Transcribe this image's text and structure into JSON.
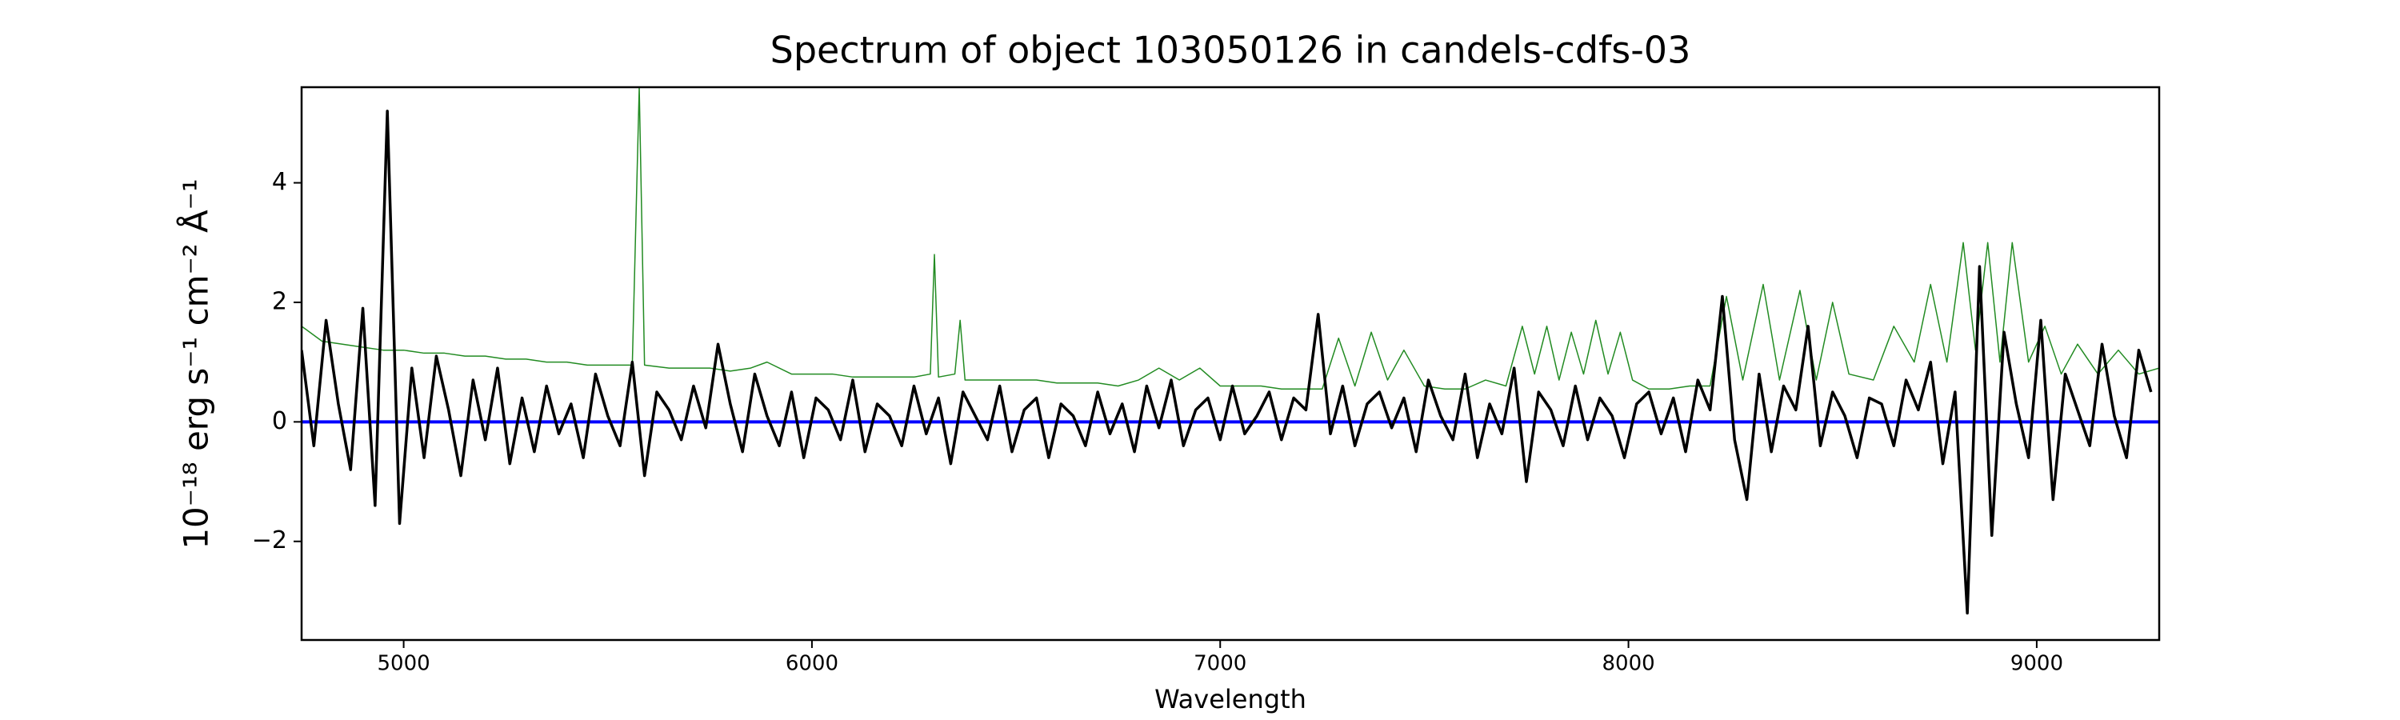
{
  "chart_data": {
    "type": "line",
    "title": "Spectrum of object 103050126 in candels-cdfs-03",
    "xlabel": "Wavelength",
    "ylabel": "10⁻¹⁸ erg s⁻¹ cm⁻² Å⁻¹",
    "xlim": [
      4750,
      9300
    ],
    "ylim": [
      -3.65,
      5.6
    ],
    "xticks": [
      5000,
      6000,
      7000,
      8000,
      9000
    ],
    "yticks": [
      {
        "value": -2,
        "label": "−2"
      },
      0,
      2,
      4
    ],
    "series": [
      {
        "color": "#228b22",
        "width": 1.5,
        "x": [
          4750,
          4800,
          4850,
          4900,
          4950,
          5000,
          5050,
          5100,
          5150,
          5200,
          5250,
          5300,
          5350,
          5400,
          5450,
          5500,
          5560,
          5577,
          5590,
          5650,
          5700,
          5750,
          5800,
          5850,
          5890,
          5950,
          6000,
          6050,
          6100,
          6150,
          6200,
          6250,
          6290,
          6300,
          6310,
          6350,
          6363,
          6375,
          6450,
          6500,
          6550,
          6600,
          6650,
          6700,
          6750,
          6800,
          6850,
          6900,
          6950,
          7000,
          7050,
          7100,
          7150,
          7200,
          7250,
          7290,
          7330,
          7370,
          7410,
          7450,
          7500,
          7550,
          7600,
          7650,
          7700,
          7740,
          7770,
          7800,
          7830,
          7860,
          7890,
          7920,
          7950,
          7980,
          8010,
          8050,
          8100,
          8150,
          8200,
          8240,
          8280,
          8330,
          8370,
          8420,
          8460,
          8500,
          8540,
          8600,
          8650,
          8700,
          8740,
          8780,
          8820,
          8850,
          8880,
          8910,
          8940,
          8980,
          9020,
          9060,
          9100,
          9150,
          9200,
          9250,
          9300
        ],
        "values": [
          1.6,
          1.35,
          1.3,
          1.25,
          1.2,
          1.2,
          1.15,
          1.15,
          1.1,
          1.1,
          1.05,
          1.05,
          1.0,
          1.0,
          0.95,
          0.95,
          0.95,
          5.6,
          0.95,
          0.9,
          0.9,
          0.9,
          0.85,
          0.9,
          1.0,
          0.8,
          0.8,
          0.8,
          0.75,
          0.75,
          0.75,
          0.75,
          0.8,
          2.8,
          0.75,
          0.8,
          1.7,
          0.7,
          0.7,
          0.7,
          0.7,
          0.65,
          0.65,
          0.65,
          0.6,
          0.7,
          0.9,
          0.7,
          0.9,
          0.6,
          0.6,
          0.6,
          0.55,
          0.55,
          0.55,
          1.4,
          0.6,
          1.5,
          0.7,
          1.2,
          0.6,
          0.55,
          0.55,
          0.7,
          0.6,
          1.6,
          0.8,
          1.6,
          0.7,
          1.5,
          0.8,
          1.7,
          0.8,
          1.5,
          0.7,
          0.55,
          0.55,
          0.6,
          0.6,
          2.1,
          0.7,
          2.3,
          0.7,
          2.2,
          0.7,
          2.0,
          0.8,
          0.7,
          1.6,
          1.0,
          2.3,
          1.0,
          3.0,
          1.2,
          3.0,
          1.0,
          3.0,
          1.0,
          1.6,
          0.8,
          1.3,
          0.8,
          1.2,
          0.8,
          0.9
        ]
      },
      {
        "color": "#0000ff",
        "width": 4,
        "x": [
          4750,
          9300
        ],
        "values": [
          0,
          0
        ]
      },
      {
        "color": "#000000",
        "width": 3.5,
        "x": [
          4750,
          4780,
          4810,
          4840,
          4870,
          4900,
          4930,
          4960,
          4990,
          5020,
          5050,
          5080,
          5110,
          5140,
          5170,
          5200,
          5230,
          5260,
          5290,
          5320,
          5350,
          5380,
          5410,
          5440,
          5470,
          5500,
          5530,
          5560,
          5590,
          5620,
          5650,
          5680,
          5710,
          5740,
          5770,
          5800,
          5830,
          5860,
          5890,
          5920,
          5950,
          5980,
          6010,
          6040,
          6070,
          6100,
          6130,
          6160,
          6190,
          6220,
          6250,
          6280,
          6310,
          6340,
          6370,
          6400,
          6430,
          6460,
          6490,
          6520,
          6550,
          6580,
          6610,
          6640,
          6670,
          6700,
          6730,
          6760,
          6790,
          6820,
          6850,
          6880,
          6910,
          6940,
          6970,
          7000,
          7030,
          7060,
          7090,
          7120,
          7150,
          7180,
          7210,
          7240,
          7270,
          7300,
          7330,
          7360,
          7390,
          7420,
          7450,
          7480,
          7510,
          7540,
          7570,
          7600,
          7630,
          7660,
          7690,
          7720,
          7750,
          7780,
          7810,
          7840,
          7870,
          7900,
          7930,
          7960,
          7990,
          8020,
          8050,
          8080,
          8110,
          8140,
          8170,
          8200,
          8230,
          8260,
          8290,
          8320,
          8350,
          8380,
          8410,
          8440,
          8470,
          8500,
          8530,
          8560,
          8590,
          8620,
          8650,
          8680,
          8710,
          8740,
          8770,
          8800,
          8830,
          8860,
          8890,
          8920,
          8950,
          8980,
          9010,
          9040,
          9070,
          9100,
          9130,
          9160,
          9190,
          9220,
          9250,
          9280
        ],
        "values": [
          1.2,
          -0.4,
          1.7,
          0.3,
          -0.8,
          1.9,
          -1.4,
          5.2,
          -1.7,
          0.9,
          -0.6,
          1.1,
          0.2,
          -0.9,
          0.7,
          -0.3,
          0.9,
          -0.7,
          0.4,
          -0.5,
          0.6,
          -0.2,
          0.3,
          -0.6,
          0.8,
          0.1,
          -0.4,
          1.0,
          -0.9,
          0.5,
          0.2,
          -0.3,
          0.6,
          -0.1,
          1.3,
          0.3,
          -0.5,
          0.8,
          0.1,
          -0.4,
          0.5,
          -0.6,
          0.4,
          0.2,
          -0.3,
          0.7,
          -0.5,
          0.3,
          0.1,
          -0.4,
          0.6,
          -0.2,
          0.4,
          -0.7,
          0.5,
          0.1,
          -0.3,
          0.6,
          -0.5,
          0.2,
          0.4,
          -0.6,
          0.3,
          0.1,
          -0.4,
          0.5,
          -0.2,
          0.3,
          -0.5,
          0.6,
          -0.1,
          0.7,
          -0.4,
          0.2,
          0.4,
          -0.3,
          0.6,
          -0.2,
          0.1,
          0.5,
          -0.3,
          0.4,
          0.2,
          1.8,
          -0.2,
          0.6,
          -0.4,
          0.3,
          0.5,
          -0.1,
          0.4,
          -0.5,
          0.7,
          0.1,
          -0.3,
          0.8,
          -0.6,
          0.3,
          -0.2,
          0.9,
          -1.0,
          0.5,
          0.2,
          -0.4,
          0.6,
          -0.3,
          0.4,
          0.1,
          -0.6,
          0.3,
          0.5,
          -0.2,
          0.4,
          -0.5,
          0.7,
          0.2,
          2.1,
          -0.3,
          -1.3,
          0.8,
          -0.5,
          0.6,
          0.2,
          1.6,
          -0.4,
          0.5,
          0.1,
          -0.6,
          0.4,
          0.3,
          -0.4,
          0.7,
          0.2,
          1.0,
          -0.7,
          0.5,
          -3.2,
          2.6,
          -1.9,
          1.5,
          0.3,
          -0.6,
          1.7,
          -1.3,
          0.8,
          0.2,
          -0.4,
          1.3,
          0.1,
          -0.6,
          1.2,
          0.5
        ]
      }
    ]
  }
}
